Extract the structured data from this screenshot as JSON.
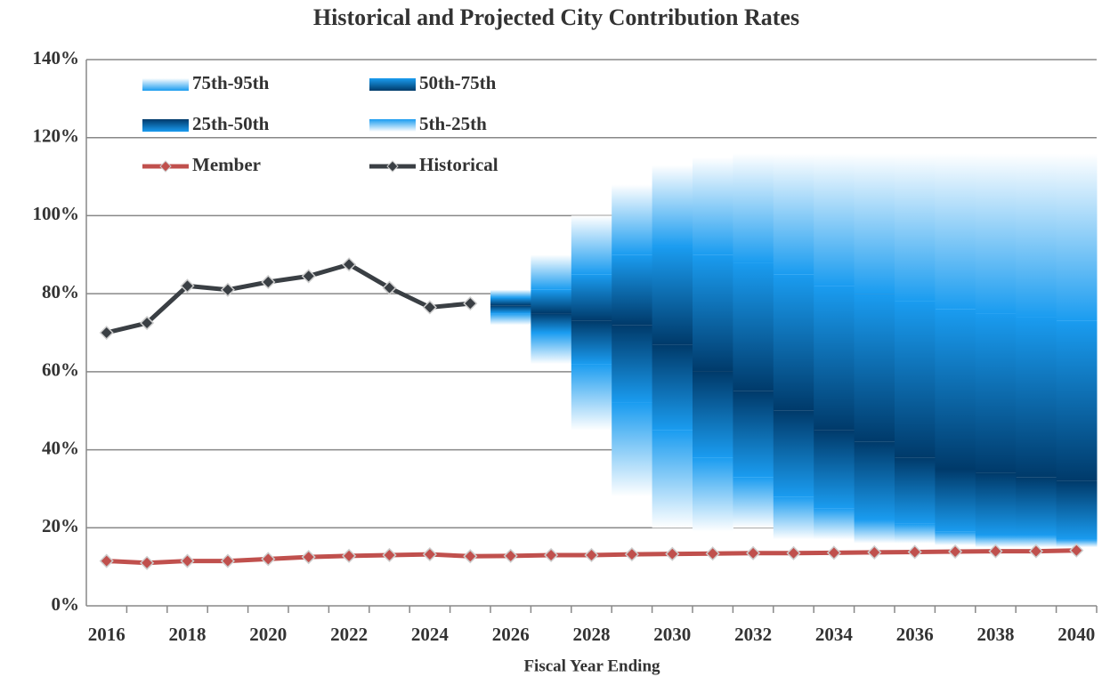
{
  "chart_data": {
    "type": "fan",
    "title": "Historical and Projected City Contribution Rates",
    "x_label": "Fiscal Year Ending",
    "categories": [
      "2016",
      null,
      "2018",
      null,
      "2020",
      null,
      "2022",
      null,
      "2024",
      null,
      "2026",
      null,
      "2028",
      null,
      "2030",
      null,
      "2032",
      null,
      "2034",
      null,
      "2036",
      null,
      "2038",
      null,
      "2040"
    ],
    "band_base": [
      null,
      null,
      null,
      null,
      null,
      null,
      null,
      null,
      null,
      null,
      72,
      62,
      45,
      28,
      20,
      19,
      20,
      17,
      17,
      16,
      16,
      15.5,
      15,
      15,
      15
    ],
    "series": [
      {
        "name": "5th-25th",
        "kind": "band",
        "color": "#1a9cf0",
        "values": [
          null,
          null,
          null,
          null,
          null,
          null,
          null,
          null,
          null,
          null,
          3,
          8,
          17,
          24,
          25,
          19,
          13,
          11,
          8,
          6,
          5,
          3.5,
          3,
          3,
          2
        ]
      },
      {
        "name": "25th-50th",
        "kind": "band",
        "color": "#0070c0",
        "values": [
          null,
          null,
          null,
          null,
          null,
          null,
          null,
          null,
          null,
          null,
          2,
          5,
          11,
          20,
          22,
          22,
          22,
          22,
          20,
          20,
          17,
          16,
          16,
          15,
          15
        ]
      },
      {
        "name": "50th-75th",
        "kind": "band",
        "color": "#004a80",
        "values": [
          null,
          null,
          null,
          null,
          null,
          null,
          null,
          null,
          null,
          null,
          2,
          6,
          12,
          18,
          25,
          30,
          33,
          35,
          37,
          38,
          40,
          41,
          41,
          41,
          41
        ]
      },
      {
        "name": "75th-95th",
        "kind": "band",
        "color": "#4fb3f5",
        "values": [
          null,
          null,
          null,
          null,
          null,
          null,
          null,
          null,
          null,
          null,
          2,
          9,
          15,
          18,
          21,
          25,
          28,
          31,
          34,
          36,
          38,
          40,
          41,
          42,
          43
        ]
      },
      {
        "name": "Member",
        "kind": "line",
        "color": "#c0504d",
        "values": [
          11.5,
          11,
          11.5,
          11.5,
          12,
          12.5,
          12.8,
          13,
          13.2,
          12.7,
          12.8,
          13,
          13,
          13.2,
          13.3,
          13.4,
          13.5,
          13.5,
          13.6,
          13.7,
          13.8,
          13.9,
          14,
          14,
          14.2
        ]
      },
      {
        "name": "Historical",
        "kind": "line",
        "color": "#3a3f44",
        "values": [
          70,
          72.5,
          82,
          81,
          83,
          84.5,
          87.5,
          81.5,
          76.5,
          77.5,
          null,
          null,
          null,
          null,
          null,
          null,
          null,
          null,
          null,
          null,
          null,
          null,
          null,
          null,
          null
        ]
      }
    ],
    "ylim": [
      0,
      140
    ],
    "yticks": [
      {
        "value": 0,
        "label": "0%"
      },
      {
        "value": 20,
        "label": "20%"
      },
      {
        "value": 40,
        "label": "40%"
      },
      {
        "value": 60,
        "label": "60%"
      },
      {
        "value": 80,
        "label": "80%"
      },
      {
        "value": 100,
        "label": "100%"
      },
      {
        "value": 120,
        "label": "120%"
      },
      {
        "value": 140,
        "label": "140%"
      }
    ],
    "grid": true
  }
}
